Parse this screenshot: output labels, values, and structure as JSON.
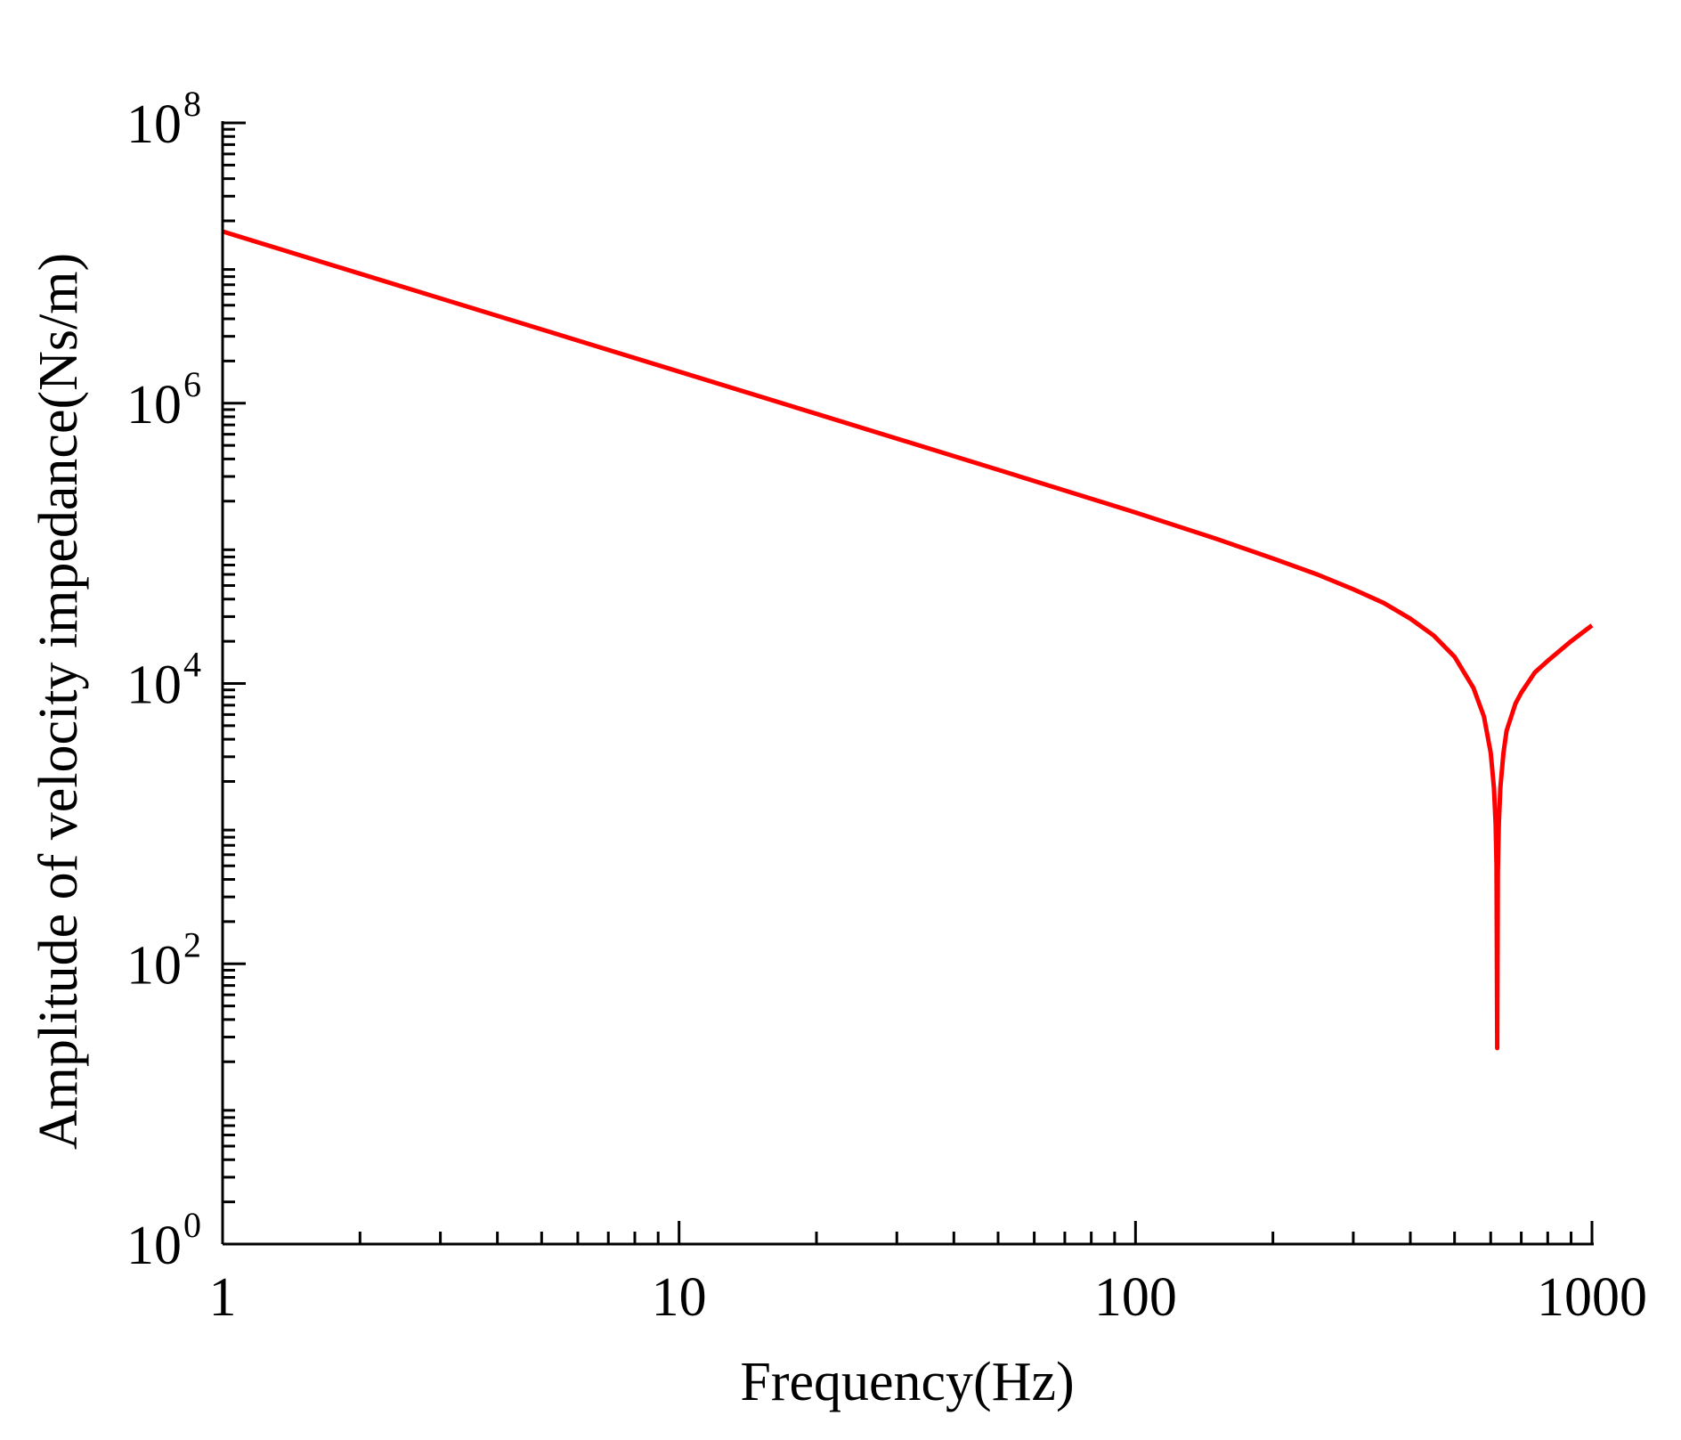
{
  "chart_data": {
    "type": "line",
    "title": "",
    "xlabel": "Frequency(Hz)",
    "ylabel": "Amplitude of velocity impedance(Ns/m)",
    "x_scale": "log",
    "y_scale": "log",
    "xlim": [
      1,
      1000
    ],
    "ylim": [
      1,
      100000000
    ],
    "grid": false,
    "legend": "none",
    "x_ticks": [
      {
        "value": 1,
        "label": "1"
      },
      {
        "value": 10,
        "label": "10"
      },
      {
        "value": 100,
        "label": "100"
      },
      {
        "value": 1000,
        "label": "1000"
      }
    ],
    "y_ticks": [
      {
        "value": 1,
        "base": "10",
        "exp": "0"
      },
      {
        "value": 100,
        "base": "10",
        "exp": "2"
      },
      {
        "value": 10000,
        "base": "10",
        "exp": "4"
      },
      {
        "value": 1000000,
        "base": "10",
        "exp": "6"
      },
      {
        "value": 100000000,
        "base": "10",
        "exp": "8"
      }
    ],
    "series": [
      {
        "color": "#ff0000",
        "x": [
          1,
          2,
          5,
          10,
          20,
          50,
          100,
          150,
          200,
          250,
          300,
          350,
          400,
          450,
          500,
          550,
          580,
          600,
          610,
          615,
          618,
          620,
          622,
          625,
          630,
          640,
          650,
          680,
          700,
          750,
          800,
          900,
          1000
        ],
        "y": [
          16800000,
          8400000,
          3360000,
          1680000,
          840000,
          335000,
          166000,
          108000,
          78000,
          60000,
          47000,
          37500,
          29000,
          22000,
          15500,
          9300,
          5800,
          3200,
          1800,
          1000,
          500,
          25,
          450,
          1000,
          1800,
          3200,
          4600,
          7200,
          8600,
          12000,
          14500,
          20000,
          26000
        ]
      }
    ]
  }
}
